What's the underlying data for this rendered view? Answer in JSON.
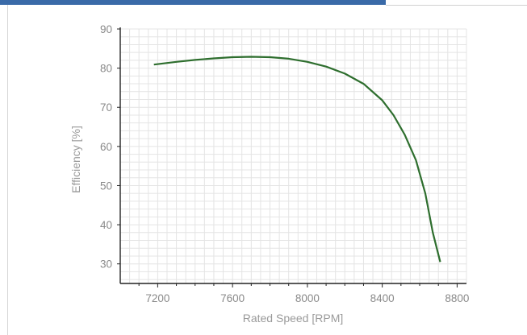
{
  "header": {
    "accent_color": "#3a6aa8"
  },
  "chart_data": {
    "type": "line",
    "title": "",
    "xlabel": "Rated Speed [RPM]",
    "ylabel": "Efficiency [%]",
    "xlim": [
      7000,
      8850
    ],
    "ylim": [
      25,
      90
    ],
    "xticks": [
      7200,
      7600,
      8000,
      8400,
      8800
    ],
    "yticks": [
      30,
      40,
      50,
      60,
      70,
      80,
      90
    ],
    "grid": true,
    "legend": "none",
    "series": [
      {
        "color": "#2e6e2e",
        "x": [
          7180,
          7300,
          7400,
          7500,
          7600,
          7700,
          7800,
          7900,
          8000,
          8100,
          8200,
          8300,
          8400,
          8460,
          8520,
          8580,
          8630,
          8670,
          8710
        ],
        "y": [
          80.9,
          81.6,
          82.1,
          82.5,
          82.8,
          82.9,
          82.8,
          82.4,
          81.6,
          80.4,
          78.6,
          76.0,
          71.8,
          68.0,
          63.0,
          56.5,
          48.0,
          38.0,
          30.5
        ]
      }
    ]
  }
}
